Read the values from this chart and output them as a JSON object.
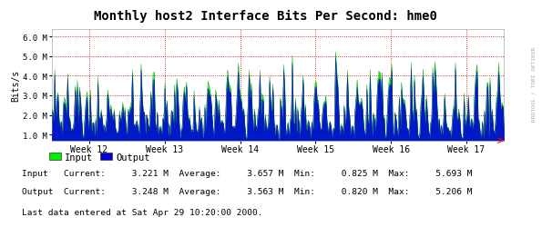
{
  "title": "Monthly host2 Interface Bits Per Second: hme0",
  "ylabel": "Bits/s",
  "watermark": "RRDTOOL / TOBI OETIKER",
  "bg_color": "#ffffff",
  "plot_bg_color": "#ffffff",
  "grid_color": "#cc0000",
  "input_fill_color": "#00ee00",
  "output_color": "#0000dd",
  "ylim_min": 700000,
  "ylim_max": 6400000,
  "yticks": [
    1000000,
    2000000,
    3000000,
    4000000,
    5000000,
    6000000
  ],
  "ytick_labels": [
    "1.0 M",
    "2.0 M",
    "3.0 M",
    "4.0 M",
    "5.0 M",
    "6.0 M"
  ],
  "week_labels": [
    "Week 12",
    "Week 13",
    "Week 14",
    "Week 15",
    "Week 16",
    "Week 17"
  ],
  "legend_input": "Input",
  "legend_output": "Output",
  "stats_line1": "Input   Current:     3.221 M  Average:     3.657 M  Min:     0.825 M  Max:     5.693 M",
  "stats_line2": "Output  Current:     3.248 M  Average:     3.563 M  Min:     0.820 M  Max:     5.206 M",
  "last_data": "Last data entered at Sat Apr 29 10:20:00 2000.",
  "num_weeks": 6,
  "seed": 42,
  "input_avg": 3657000,
  "input_min": 825000,
  "input_max": 5693000,
  "output_avg": 3563000,
  "output_min": 820000,
  "output_max": 5206000
}
